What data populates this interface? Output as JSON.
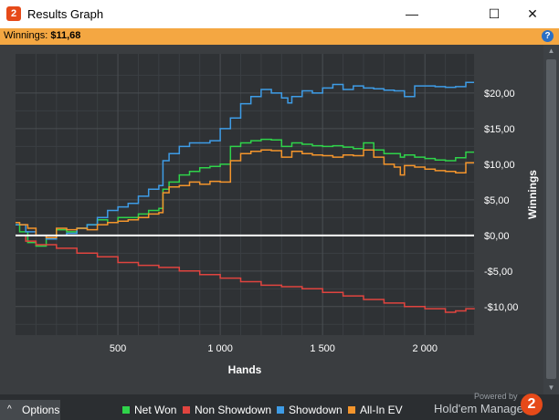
{
  "window": {
    "title": "Results Graph",
    "app_icon": "2",
    "minimize": "—",
    "maximize": "☐",
    "close": "✕"
  },
  "winnings": {
    "label": "Winnings:",
    "value": "$11,68",
    "help": "?"
  },
  "options": {
    "caret": "^",
    "label": "Options"
  },
  "branding": {
    "powered_by": "Powered by",
    "name": "Hold'em Manager",
    "logo": "2"
  },
  "colors": {
    "net_won": "#2fd34a",
    "non_showdown": "#e0443f",
    "showdown": "#3e9ce6",
    "all_in_ev": "#f4952c",
    "zero_line": "#ffffff"
  },
  "chart_data": {
    "type": "line",
    "xlabel": "Hands",
    "ylabel": "Winnings",
    "xlim": [
      0,
      2240
    ],
    "ylim": [
      -14,
      25.5
    ],
    "xticks": [
      {
        "value": 500,
        "label": "500"
      },
      {
        "value": 1000,
        "label": "1 000"
      },
      {
        "value": 1500,
        "label": "1 500"
      },
      {
        "value": 2000,
        "label": "2 000"
      }
    ],
    "yticks": [
      {
        "value": 20,
        "label": "$20,00"
      },
      {
        "value": 15,
        "label": "$15,00"
      },
      {
        "value": 10,
        "label": "$10,00"
      },
      {
        "value": 5,
        "label": "$5,00"
      },
      {
        "value": 0,
        "label": "$0,00"
      },
      {
        "value": -5,
        "label": "-$5,00"
      },
      {
        "value": -10,
        "label": "-$10,00"
      }
    ],
    "grid": true,
    "legend_position": "bottom",
    "series": [
      {
        "name": "Net Won",
        "color": "#2fd34a",
        "x": [
          0,
          20,
          60,
          100,
          150,
          200,
          250,
          300,
          350,
          400,
          450,
          500,
          550,
          600,
          650,
          700,
          720,
          750,
          800,
          850,
          900,
          950,
          1000,
          1050,
          1100,
          1150,
          1200,
          1250,
          1300,
          1350,
          1400,
          1450,
          1500,
          1550,
          1600,
          1650,
          1700,
          1750,
          1800,
          1850,
          1880,
          1900,
          1950,
          2000,
          2050,
          2100,
          2150,
          2200,
          2240
        ],
        "y": [
          1.5,
          0.5,
          -1.0,
          -1.5,
          -0.5,
          0.8,
          0.5,
          1.0,
          1.5,
          2.2,
          1.8,
          2.5,
          2.5,
          3.0,
          3.5,
          3.8,
          6.5,
          7.5,
          8.5,
          9.0,
          9.5,
          9.7,
          10.0,
          12.5,
          13.0,
          13.3,
          13.5,
          13.4,
          12.5,
          13.0,
          12.8,
          12.6,
          12.5,
          12.6,
          12.4,
          12.2,
          13.0,
          12.0,
          11.5,
          11.5,
          11.0,
          11.3,
          11.0,
          10.8,
          10.6,
          10.5,
          10.9,
          11.7,
          11.7
        ]
      },
      {
        "name": "Non Showdown",
        "color": "#e0443f",
        "x": [
          0,
          50,
          100,
          200,
          300,
          400,
          500,
          600,
          700,
          800,
          900,
          1000,
          1100,
          1200,
          1300,
          1400,
          1500,
          1600,
          1700,
          1800,
          1900,
          2000,
          2100,
          2150,
          2200,
          2240
        ],
        "y": [
          0.0,
          -0.8,
          -1.3,
          -1.8,
          -2.5,
          -3.0,
          -3.8,
          -4.2,
          -4.5,
          -5.0,
          -5.5,
          -6.0,
          -6.5,
          -7.0,
          -7.2,
          -7.5,
          -8.0,
          -8.5,
          -9.0,
          -9.5,
          -10.0,
          -10.3,
          -10.8,
          -10.6,
          -10.3,
          -10.2
        ]
      },
      {
        "name": "Showdown",
        "color": "#3e9ce6",
        "x": [
          0,
          50,
          100,
          150,
          200,
          250,
          300,
          350,
          400,
          450,
          500,
          550,
          600,
          650,
          700,
          720,
          750,
          800,
          850,
          900,
          950,
          1000,
          1050,
          1100,
          1150,
          1200,
          1250,
          1300,
          1330,
          1350,
          1400,
          1450,
          1500,
          1550,
          1600,
          1650,
          1700,
          1750,
          1800,
          1850,
          1900,
          1950,
          2000,
          2050,
          2100,
          2150,
          2200,
          2240
        ],
        "y": [
          1.5,
          0.5,
          0.0,
          -0.5,
          0.0,
          0.3,
          1.0,
          1.5,
          2.5,
          3.5,
          4.0,
          4.5,
          5.5,
          6.5,
          7.0,
          10.5,
          11.5,
          12.5,
          13.0,
          13.0,
          13.3,
          15.0,
          16.5,
          18.5,
          19.5,
          20.5,
          20.0,
          19.3,
          18.6,
          19.5,
          20.3,
          20.0,
          20.7,
          21.2,
          20.5,
          21.0,
          20.7,
          20.6,
          20.4,
          20.3,
          19.5,
          21.0,
          21.0,
          20.9,
          20.8,
          20.9,
          21.5,
          21.5
        ]
      },
      {
        "name": "All-In EV",
        "color": "#f4952c",
        "x": [
          0,
          20,
          60,
          100,
          150,
          200,
          250,
          300,
          350,
          400,
          450,
          500,
          550,
          600,
          650,
          700,
          720,
          750,
          800,
          850,
          900,
          950,
          1000,
          1050,
          1100,
          1150,
          1200,
          1250,
          1300,
          1350,
          1400,
          1450,
          1500,
          1550,
          1600,
          1650,
          1700,
          1750,
          1800,
          1850,
          1880,
          1900,
          1950,
          2000,
          2050,
          2100,
          2150,
          2200,
          2240
        ],
        "y": [
          1.8,
          1.5,
          1.0,
          0.0,
          -0.3,
          1.0,
          0.8,
          1.0,
          0.8,
          1.5,
          1.8,
          2.0,
          2.2,
          2.5,
          3.0,
          3.2,
          6.0,
          6.8,
          7.0,
          7.5,
          7.2,
          7.6,
          7.5,
          10.5,
          11.5,
          11.8,
          12.0,
          11.9,
          11.0,
          11.8,
          11.5,
          11.3,
          11.2,
          11.0,
          11.3,
          11.2,
          12.0,
          11.0,
          10.0,
          9.6,
          8.5,
          9.8,
          9.6,
          9.3,
          9.1,
          9.0,
          8.8,
          10.2,
          10.2
        ]
      }
    ]
  }
}
